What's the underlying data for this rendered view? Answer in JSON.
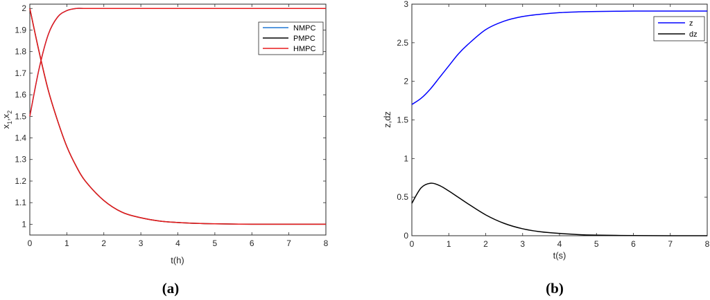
{
  "chart_data": [
    {
      "type": "line",
      "caption": "(a)",
      "xlabel": "t(h)",
      "ylabel": "x",
      "ylabel_sub1": "1",
      "ylabel_sep": ",x",
      "ylabel_sub2": "2",
      "xlim": [
        0,
        8
      ],
      "ylim": [
        0.95,
        2.02
      ],
      "xticks": [
        "0",
        "1",
        "2",
        "3",
        "4",
        "5",
        "6",
        "7",
        "8"
      ],
      "yticks": [
        "1",
        "1.1",
        "1.2",
        "1.3",
        "1.4",
        "1.5",
        "1.6",
        "1.7",
        "1.8",
        "1.9",
        "2"
      ],
      "legend_position": "top-right",
      "x": [
        0,
        0.25,
        0.5,
        0.75,
        1,
        1.25,
        1.5,
        2,
        2.5,
        3,
        3.5,
        4,
        4.5,
        5,
        6,
        7,
        8
      ],
      "series": [
        {
          "name": "NMPC",
          "color": "#1f77d4",
          "values": [
            1.5,
            1.72,
            1.88,
            1.96,
            1.99,
            2.0,
            2.0,
            2.0,
            2.0,
            2.0,
            2.0,
            2.0,
            2.0,
            2.0,
            2.0,
            2.0,
            2.0
          ]
        },
        {
          "name": "PMPC",
          "color": "#000000",
          "values": [
            2.0,
            1.8,
            1.62,
            1.48,
            1.36,
            1.27,
            1.2,
            1.11,
            1.055,
            1.03,
            1.015,
            1.008,
            1.004,
            1.002,
            1.0,
            1.0,
            1.0
          ]
        },
        {
          "name": "HMPC",
          "color": "#e8191b",
          "values": [
            1.5,
            1.72,
            1.88,
            1.96,
            1.99,
            2.0,
            2.0,
            2.0,
            2.0,
            2.0,
            2.0,
            2.0,
            2.0,
            2.0,
            2.0,
            2.0,
            2.0
          ]
        },
        {
          "name": "",
          "color": "#e8191b",
          "values": [
            2.0,
            1.8,
            1.62,
            1.48,
            1.36,
            1.27,
            1.2,
            1.11,
            1.055,
            1.03,
            1.015,
            1.008,
            1.004,
            1.002,
            1.0,
            1.0,
            1.0
          ]
        }
      ]
    },
    {
      "type": "line",
      "caption": "(b)",
      "xlabel": "t(s)",
      "ylabel": "z,dz",
      "xlim": [
        0,
        8
      ],
      "ylim": [
        0,
        3
      ],
      "xticks": [
        "0",
        "1",
        "2",
        "3",
        "4",
        "5",
        "6",
        "7",
        "8"
      ],
      "yticks": [
        "0",
        "0.5",
        "1",
        "1.5",
        "2",
        "2.5",
        "3"
      ],
      "legend_position": "top-right",
      "x": [
        0,
        0.25,
        0.5,
        0.75,
        1,
        1.25,
        1.5,
        2,
        2.5,
        3,
        3.5,
        4,
        4.5,
        5,
        6,
        7,
        8
      ],
      "series": [
        {
          "name": "z",
          "color": "#0000ff",
          "values": [
            1.7,
            1.78,
            1.9,
            2.05,
            2.2,
            2.35,
            2.47,
            2.67,
            2.78,
            2.84,
            2.87,
            2.89,
            2.9,
            2.905,
            2.91,
            2.91,
            2.91
          ]
        },
        {
          "name": "dz",
          "color": "#000000",
          "values": [
            0.42,
            0.62,
            0.68,
            0.65,
            0.58,
            0.5,
            0.42,
            0.27,
            0.16,
            0.09,
            0.05,
            0.03,
            0.015,
            0.008,
            0.002,
            0.0,
            0.0
          ]
        }
      ]
    }
  ]
}
